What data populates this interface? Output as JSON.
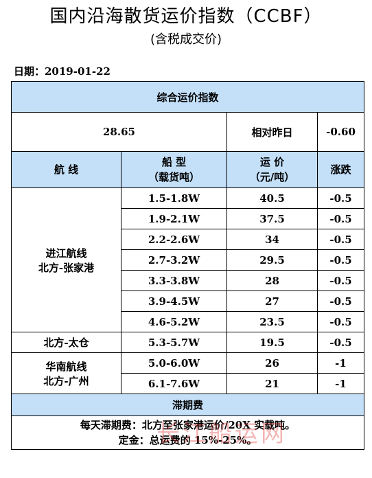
{
  "header": {
    "title": "国内沿海散货运价指数（CCBF）",
    "subtitle": "(含税成交价)",
    "date_text": "日期：2019-01-22"
  },
  "table": {
    "composite_title": "综合运价指数",
    "composite_value": "28.65",
    "compare_label": "相对昨日",
    "compare_value": "-0.60",
    "headers": {
      "route": "航 线",
      "ship_type_line1": "船 型",
      "ship_type_line2": "（载货吨）",
      "freight_line1": "运 价",
      "freight_line2": "（元/吨）",
      "change": "涨跌"
    },
    "groups": [
      {
        "route_line1": "进江航线",
        "route_line2": "北方-张家港",
        "rows": [
          {
            "ship": "1.5-1.8W",
            "freight": "40.5",
            "change": "-0.5"
          },
          {
            "ship": "1.9-2.1W",
            "freight": "37.5",
            "change": "-0.5"
          },
          {
            "ship": "2.2-2.6W",
            "freight": "34",
            "change": "-0.5"
          },
          {
            "ship": "2.7-3.2W",
            "freight": "29.5",
            "change": "-0.5"
          },
          {
            "ship": "3.3-3.8W",
            "freight": "28",
            "change": "-0.5"
          },
          {
            "ship": "3.9-4.5W",
            "freight": "27",
            "change": "-0.5"
          },
          {
            "ship": "4.6-5.2W",
            "freight": "23.5",
            "change": "-0.5"
          }
        ]
      },
      {
        "route_line1": "北方-太仓",
        "route_line2": "",
        "rows": [
          {
            "ship": "5.3-5.7W",
            "freight": "19.5",
            "change": "-0.5"
          }
        ]
      },
      {
        "route_line1": "华南航线",
        "route_line2": "北方-广州",
        "rows": [
          {
            "ship": "5.0-6.0W",
            "freight": "26",
            "change": "-1"
          },
          {
            "ship": "6.1-7.6W",
            "freight": "21",
            "change": "-1"
          }
        ]
      }
    ],
    "demurrage_title": "滞期费",
    "notes": [
      "每天滞期费：北方至张家港运价/20X 实载吨。",
      "定金：总运费的 15%-25%。"
    ]
  },
  "watermark": "长江船运网",
  "colors": {
    "header_blue": "#c4e0f9",
    "border": "#000000",
    "watermark": "#e03030"
  }
}
